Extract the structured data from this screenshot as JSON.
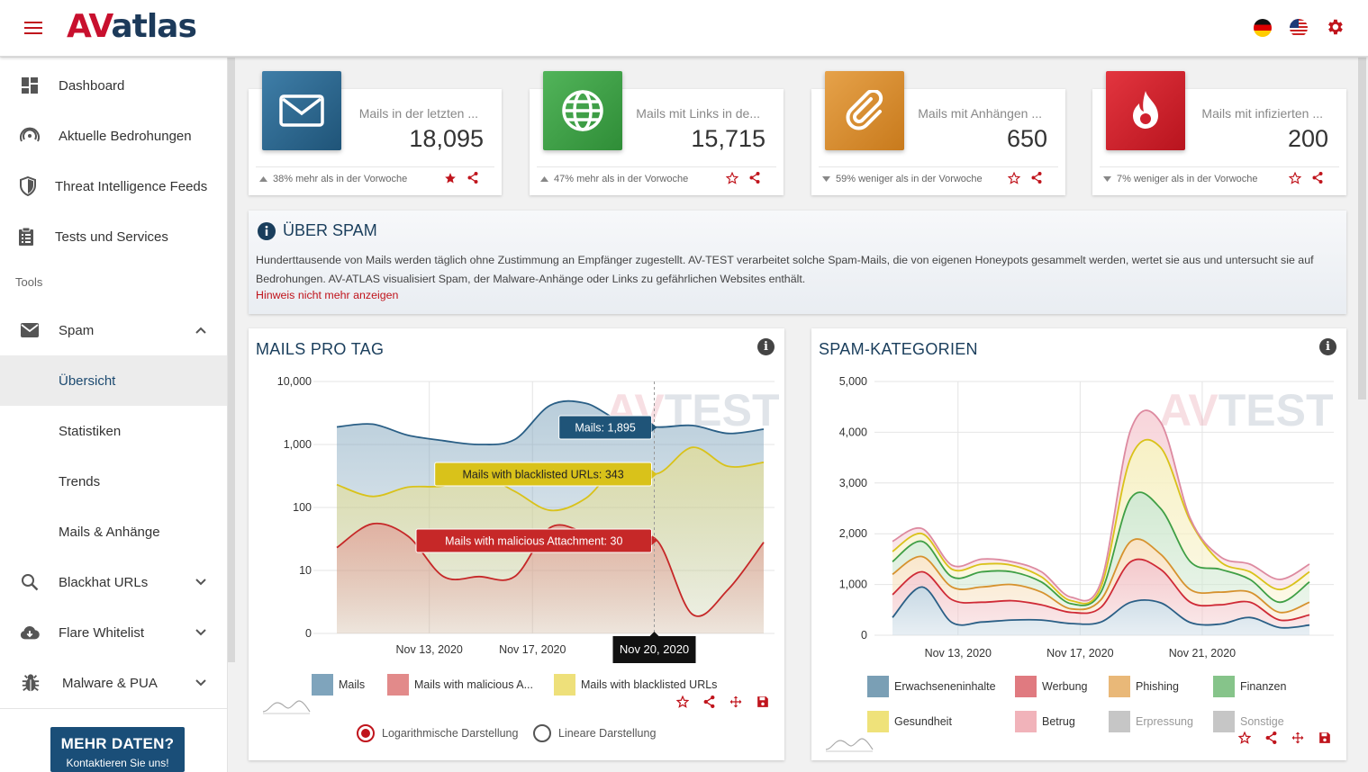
{
  "header": {
    "logo_prefix": "AV",
    "logo_text": "atlas"
  },
  "sidebar": {
    "items": [
      {
        "label": "Dashboard",
        "icon": "dashboard-icon"
      },
      {
        "label": "Aktuelle Bedrohungen",
        "icon": "radar-icon"
      },
      {
        "label": "Threat Intelligence Feeds",
        "icon": "shield-icon"
      },
      {
        "label": "Tests und Services",
        "icon": "clipboard-icon"
      }
    ],
    "tools_label": "Tools",
    "spam": {
      "label": "Spam",
      "children": [
        "Übersicht",
        "Statistiken",
        "Trends",
        "Mails & Anhänge"
      ],
      "active": "Übersicht"
    },
    "groups": [
      {
        "label": "Blackhat URLs",
        "icon": "search-icon"
      },
      {
        "label": "Flare Whitelist",
        "icon": "cloud-download-icon"
      },
      {
        "label": "Malware & PUA",
        "icon": "bug-icon"
      }
    ],
    "cta": {
      "title": "MEHR DATEN?",
      "subtitle": "Kontaktieren Sie uns!"
    }
  },
  "stats": [
    {
      "label": "Mails in der letzten ...",
      "value": "18,095",
      "trend": "38% mehr als in der Vorwoche",
      "dir": "up",
      "color": "#2f6a8e",
      "icon": "mail-icon",
      "starred": true
    },
    {
      "label": "Mails mit Links in de...",
      "value": "15,715",
      "trend": "47% mehr als in der Vorwoche",
      "dir": "up",
      "color": "#3f9f45",
      "icon": "globe-icon",
      "starred": false
    },
    {
      "label": "Mails mit Anhängen ...",
      "value": "650",
      "trend": "59% weniger als in der Vorwoche",
      "dir": "down",
      "color": "#db8f2e",
      "icon": "paperclip-icon",
      "starred": false
    },
    {
      "label": "Mails mit infizierten ...",
      "value": "200",
      "trend": "7% weniger als in der Vorwoche",
      "dir": "down",
      "color": "#d0202e",
      "icon": "flame-icon",
      "starred": false
    }
  ],
  "info": {
    "title": "ÜBER SPAM",
    "line1": "Hunderttausende von Mails werden täglich ohne Zustimmung an Empfänger zugestellt. AV-TEST verarbeitet solche Spam-Mails, die von eigenen Honeypots gesammelt werden, wertet sie aus und untersucht sie auf",
    "line2": "Bedrohungen. AV-ATLAS visualisiert Spam, der Malware-Anhänge oder Links zu gefährlichen Websites enthält.",
    "hint": "Hinweis nicht mehr anzeigen"
  },
  "watermark": {
    "prefix": "AV",
    "text": "TEST"
  },
  "chart_data": [
    {
      "type": "area",
      "title": "MAILS PRO TAG",
      "scale": "log",
      "y_ticks": [
        "10,000",
        "1,000",
        "100",
        "10",
        "0"
      ],
      "x_ticks": [
        "Nov 13, 2020",
        "Nov 17, 2020",
        "Nov 20, 2020"
      ],
      "crosshair_label": "Nov 20, 2020",
      "series": [
        {
          "name": "Mails",
          "legend": "Mails",
          "color": "#2a5f86",
          "fill": "#7fa4bc",
          "values": [
            1900,
            2100,
            1400,
            1150,
            1000,
            1200,
            4200,
            4500,
            2300,
            1895,
            2000,
            1500,
            1750
          ]
        },
        {
          "name": "Mails with blacklisted URLs",
          "legend": "Mails with blacklisted URLs",
          "color": "#d9c21a",
          "fill": "#eee07a",
          "values": [
            230,
            150,
            210,
            220,
            330,
            180,
            90,
            140,
            500,
            343,
            900,
            450,
            520
          ]
        },
        {
          "name": "Mails with malicious Attachment",
          "legend": "Mails with malicious A...",
          "color": "#c62828",
          "fill": "#e28a8a",
          "values": [
            23,
            55,
            35,
            8,
            8,
            8,
            48,
            40,
            30,
            30,
            2,
            5,
            28
          ]
        }
      ],
      "tooltips": [
        "Mails: 1,895",
        "Mails with blacklisted URLs: 343",
        "Mails with malicious Attachment: 30"
      ],
      "radios": [
        {
          "label": "Logarithmische Darstellung",
          "selected": true
        },
        {
          "label": "Lineare Darstellung",
          "selected": false
        }
      ]
    },
    {
      "type": "area",
      "title": "SPAM-KATEGORIEN",
      "stacked": true,
      "y_ticks": [
        "5,000",
        "4,000",
        "3,000",
        "2,000",
        "1,000",
        "0"
      ],
      "ylim": [
        0,
        5000
      ],
      "x_ticks": [
        "Nov 13, 2020",
        "Nov 17, 2020",
        "Nov 21, 2020"
      ],
      "legend": [
        {
          "name": "Erwachseneninhalte",
          "color": "#7a9fb5",
          "on": true
        },
        {
          "name": "Werbung",
          "color": "#e07a80",
          "on": true
        },
        {
          "name": "Phishing",
          "color": "#e9b878",
          "on": true
        },
        {
          "name": "Finanzen",
          "color": "#86c48a",
          "on": true
        },
        {
          "name": "Gesundheit",
          "color": "#efe27a",
          "on": true
        },
        {
          "name": "Betrug",
          "color": "#f1b3ba",
          "on": true
        },
        {
          "name": "Erpressung",
          "color": "#c6c6c6",
          "on": false
        },
        {
          "name": "Sonstige",
          "color": "#c6c6c6",
          "on": false
        }
      ],
      "layers": [
        {
          "name": "Erwachseneninhalte",
          "color": "#2a5f86",
          "fill": "#c5d7e3",
          "totals": [
            350,
            950,
            250,
            260,
            300,
            300,
            230,
            260,
            650,
            640,
            250,
            220,
            350,
            150,
            200
          ]
        },
        {
          "name": "Werbung",
          "color": "#cf2a36",
          "fill": "#f3c6c9",
          "totals": [
            800,
            1250,
            700,
            650,
            680,
            600,
            450,
            550,
            1450,
            1300,
            650,
            600,
            650,
            300,
            400
          ]
        },
        {
          "name": "Phishing",
          "color": "#d6922e",
          "fill": "#f8e2c2",
          "totals": [
            1200,
            1550,
            950,
            950,
            1000,
            850,
            520,
            700,
            1850,
            1600,
            900,
            850,
            850,
            450,
            650
          ]
        },
        {
          "name": "Finanzen",
          "color": "#3f9f45",
          "fill": "#cfe8cf",
          "totals": [
            1450,
            1850,
            1150,
            1250,
            1250,
            1050,
            620,
            850,
            2700,
            2500,
            1450,
            1300,
            1100,
            650,
            1050
          ]
        },
        {
          "name": "Gesundheit",
          "color": "#d9c21a",
          "fill": "#f7f0c2",
          "totals": [
            1650,
            2000,
            1300,
            1400,
            1380,
            1150,
            680,
            950,
            3500,
            3700,
            2250,
            1450,
            1250,
            900,
            1250
          ]
        },
        {
          "name": "Betrug",
          "color": "#dd8aa0",
          "fill": "#f7d3d9",
          "totals": [
            1850,
            2100,
            1380,
            1500,
            1450,
            1250,
            750,
            1050,
            4050,
            4200,
            2300,
            1550,
            1400,
            1100,
            1400
          ]
        }
      ]
    }
  ]
}
